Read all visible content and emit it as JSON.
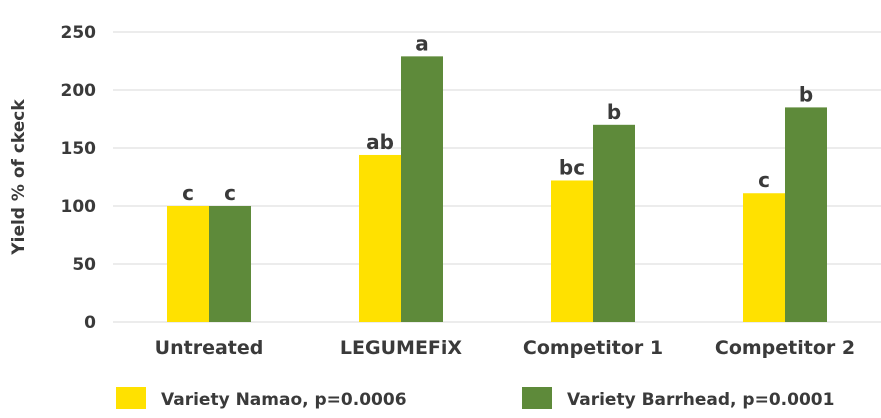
{
  "chart_data": {
    "type": "bar",
    "title": "",
    "xlabel": "",
    "ylabel": "Yield % of ckeck",
    "ylim": [
      0,
      250
    ],
    "yticks": [
      "0",
      "50",
      "100",
      "150",
      "200",
      "250"
    ],
    "grid": "horizontal",
    "legend_position": "bottom",
    "categories": [
      "Untreated",
      "LEGUMEFiX",
      "Competitor 1",
      "Competitor 2"
    ],
    "series": [
      {
        "name": "Variety Namao, p=0.0006",
        "color": "#FFE100",
        "values": [
          100,
          144,
          122,
          111
        ],
        "labels": [
          "c",
          "ab",
          "bc",
          "c"
        ]
      },
      {
        "name": "Variety Barrhead, p=0.0001",
        "color": "#5E8A3A",
        "values": [
          100,
          229,
          170,
          185
        ],
        "labels": [
          "c",
          "a",
          "b",
          "b"
        ]
      }
    ]
  }
}
